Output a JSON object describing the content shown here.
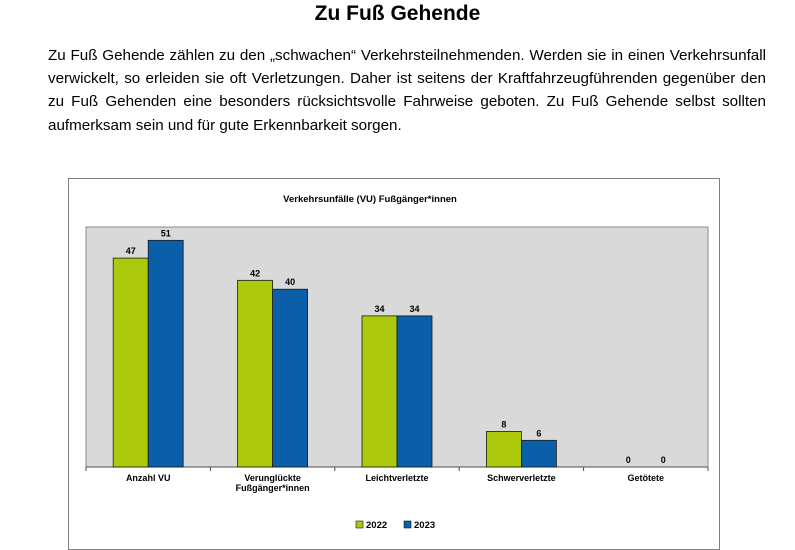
{
  "document": {
    "title": "Zu Fuß Gehende",
    "paragraph": "Zu Fuß Gehende zählen zu den „schwachen“ Verkehrsteilnehmenden. Werden sie in einen Verkehrsunfall verwickelt, so erleiden sie oft Verletzungen. Daher ist seitens der Kraftfahrzeugführenden gegenüber den zu Fuß Gehenden eine besonders rücksichtsvolle Fahrweise geboten. Zu Fuß Gehende selbst sollten aufmerksam sein und für gute Erkennbarkeit sorgen."
  },
  "chart_data": {
    "type": "bar",
    "title": "Verkehrsunfälle (VU) Fußgänger*innen",
    "xlabel": "",
    "ylabel": "",
    "ylim": [
      0,
      54
    ],
    "grid": false,
    "legend_position": "bottom",
    "plot_background": "#d9d9d9",
    "categories": [
      [
        "Anzahl VU"
      ],
      [
        "Verunglückte",
        "Fußgänger*innen"
      ],
      [
        "Leichtverletzte"
      ],
      [
        "Schwerverletzte"
      ],
      [
        "Getötete"
      ]
    ],
    "series": [
      {
        "name": "2022",
        "color": "#adc90e",
        "values": [
          47,
          42,
          34,
          8,
          0
        ]
      },
      {
        "name": "2023",
        "color": "#0b5ea8",
        "values": [
          51,
          40,
          34,
          6,
          0
        ]
      }
    ]
  }
}
